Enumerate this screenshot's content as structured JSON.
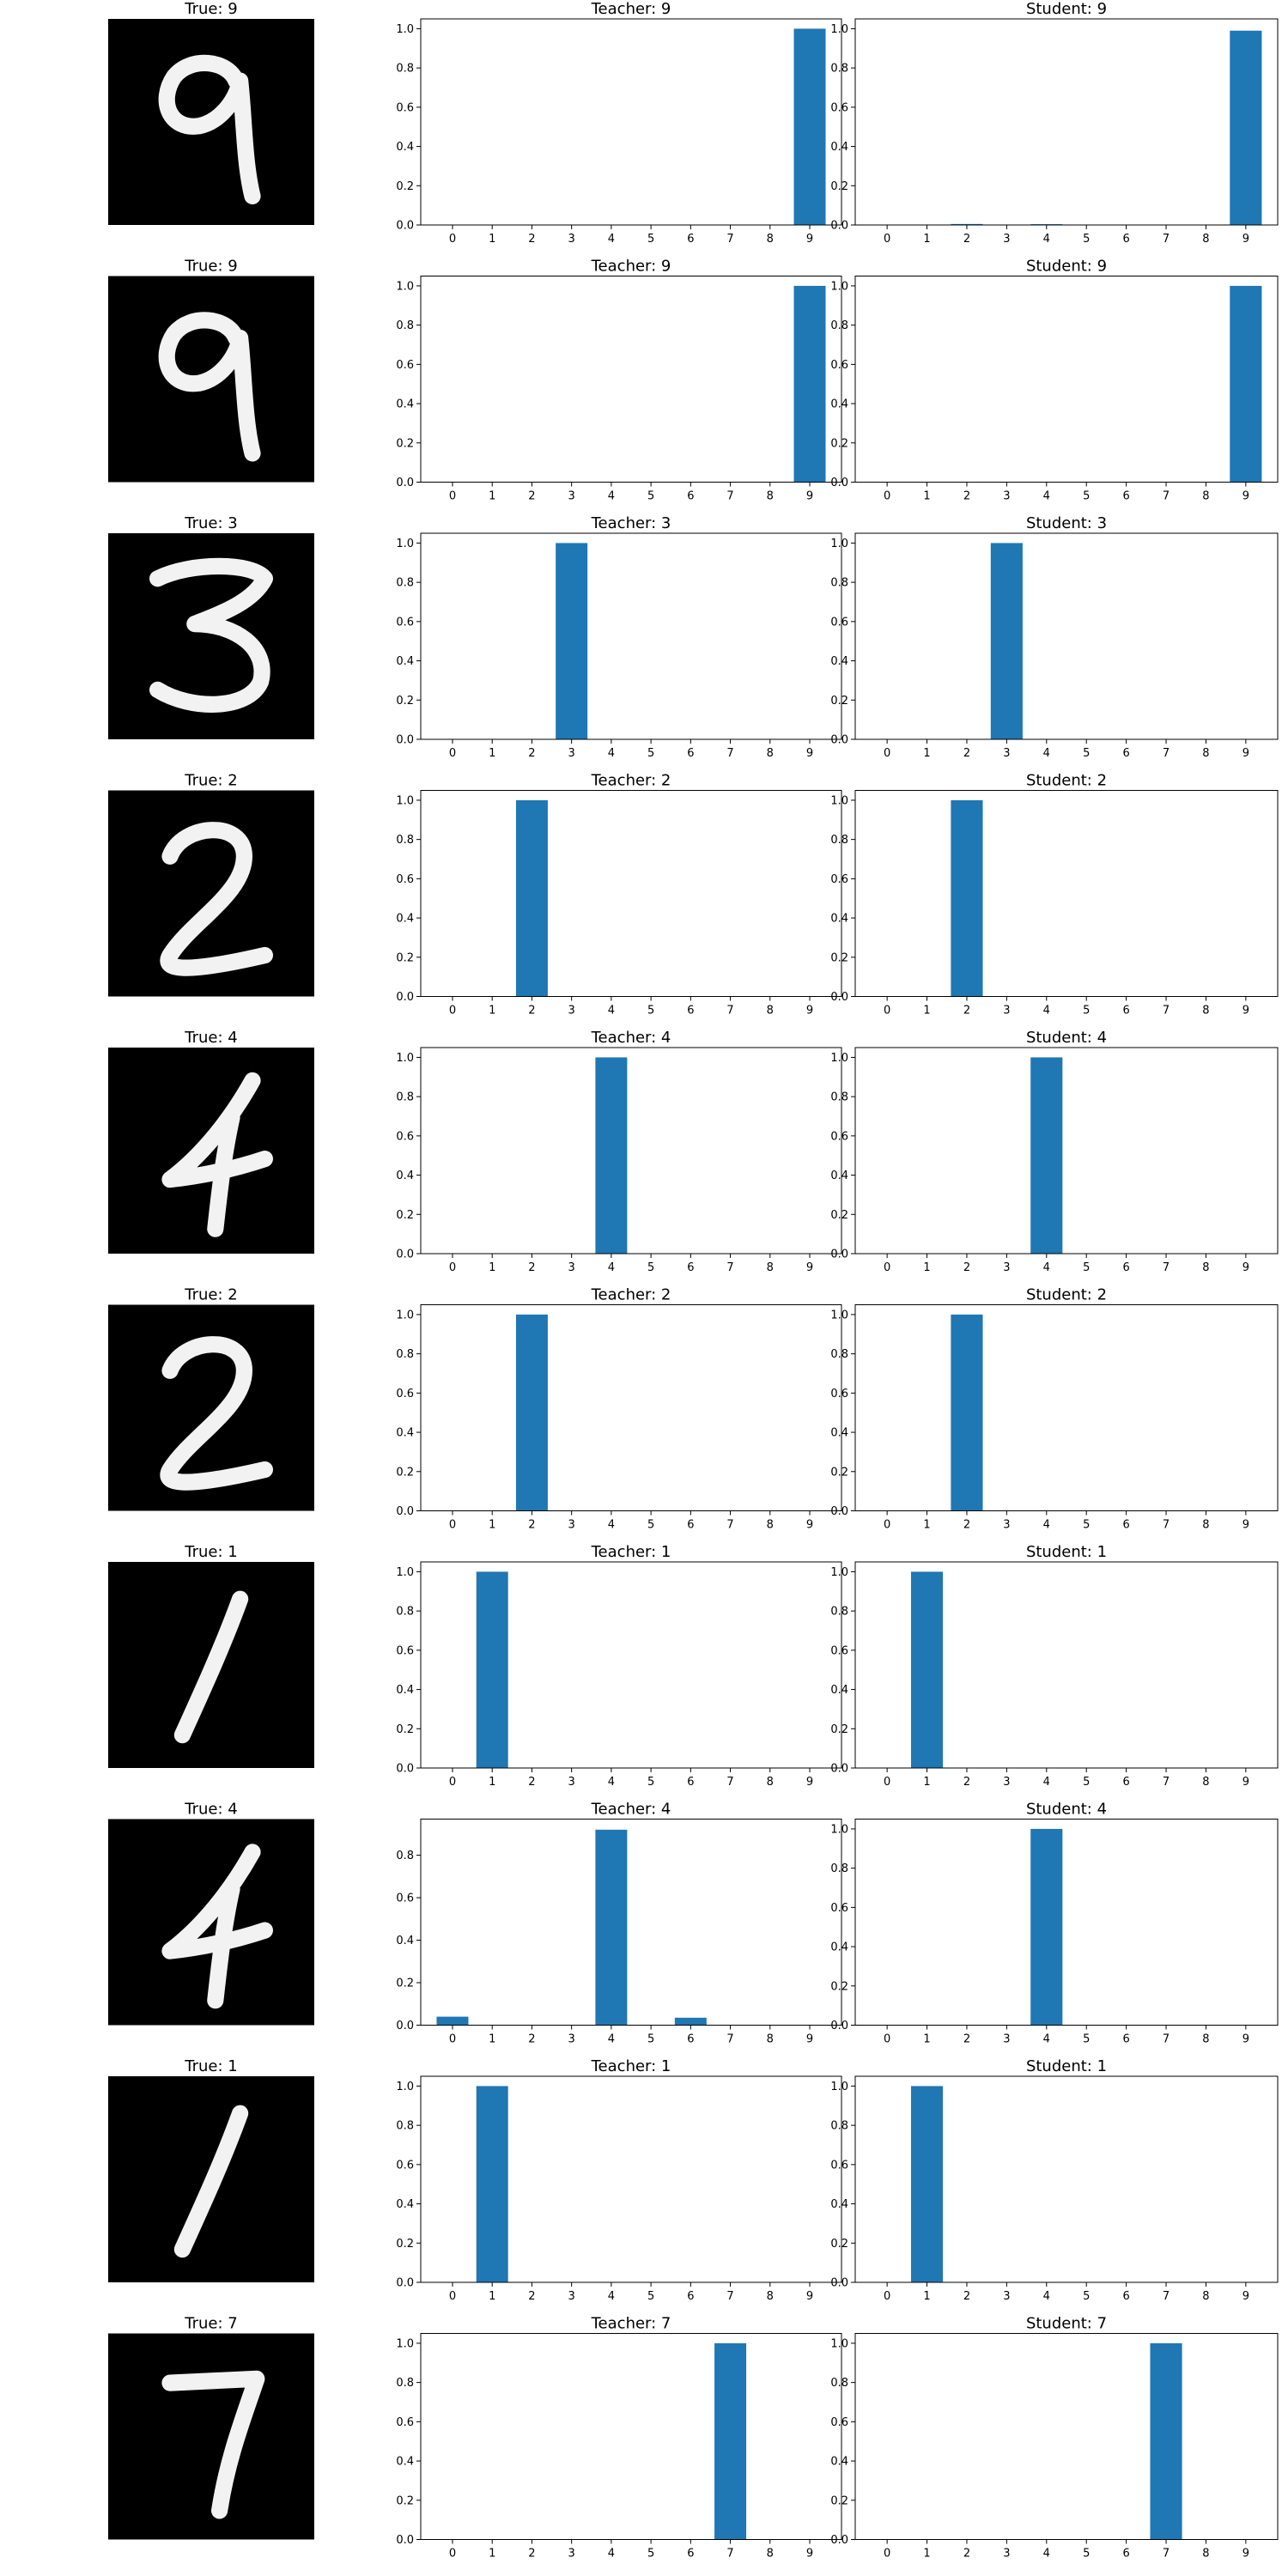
{
  "colors": {
    "bar": "#1f77b4",
    "image_bg": "#000000",
    "stroke": "#f2f2f2",
    "axis": "#000000"
  },
  "x_categories": [
    "0",
    "1",
    "2",
    "3",
    "4",
    "5",
    "6",
    "7",
    "8",
    "9"
  ],
  "rows": [
    {
      "digit": {
        "title": "True: 9",
        "glyph": "9"
      },
      "teacher": {
        "title": "Teacher: 9",
        "values": [
          0,
          0,
          0,
          0,
          0,
          0,
          0,
          0,
          0,
          1.0
        ],
        "ylim": [
          0,
          1.05
        ],
        "yticks": [
          "0.0",
          "0.2",
          "0.4",
          "0.6",
          "0.8",
          "1.0"
        ]
      },
      "student": {
        "title": "Student: 9",
        "values": [
          0,
          0,
          0.005,
          0,
          0.004,
          0,
          0,
          0,
          0,
          0.99
        ],
        "ylim": [
          0,
          1.05
        ],
        "yticks": [
          "0.0",
          "0.2",
          "0.4",
          "0.6",
          "0.8",
          "1.0"
        ]
      }
    },
    {
      "digit": {
        "title": "True: 9",
        "glyph": "9"
      },
      "teacher": {
        "title": "Teacher: 9",
        "values": [
          0,
          0,
          0,
          0,
          0,
          0,
          0,
          0,
          0,
          1.0
        ],
        "ylim": [
          0,
          1.05
        ],
        "yticks": [
          "0.0",
          "0.2",
          "0.4",
          "0.6",
          "0.8",
          "1.0"
        ]
      },
      "student": {
        "title": "Student: 9",
        "values": [
          0,
          0,
          0,
          0,
          0,
          0,
          0,
          0,
          0,
          1.0
        ],
        "ylim": [
          0,
          1.05
        ],
        "yticks": [
          "0.0",
          "0.2",
          "0.4",
          "0.6",
          "0.8",
          "1.0"
        ]
      }
    },
    {
      "digit": {
        "title": "True: 3",
        "glyph": "3"
      },
      "teacher": {
        "title": "Teacher: 3",
        "values": [
          0,
          0,
          0,
          1.0,
          0,
          0,
          0,
          0,
          0,
          0
        ],
        "ylim": [
          0,
          1.05
        ],
        "yticks": [
          "0.0",
          "0.2",
          "0.4",
          "0.6",
          "0.8",
          "1.0"
        ]
      },
      "student": {
        "title": "Student: 3",
        "values": [
          0,
          0,
          0,
          1.0,
          0,
          0,
          0,
          0,
          0,
          0
        ],
        "ylim": [
          0,
          1.05
        ],
        "yticks": [
          "0.0",
          "0.2",
          "0.4",
          "0.6",
          "0.8",
          "1.0"
        ]
      }
    },
    {
      "digit": {
        "title": "True: 2",
        "glyph": "2"
      },
      "teacher": {
        "title": "Teacher: 2",
        "values": [
          0,
          0,
          1.0,
          0,
          0,
          0,
          0,
          0,
          0,
          0
        ],
        "ylim": [
          0,
          1.05
        ],
        "yticks": [
          "0.0",
          "0.2",
          "0.4",
          "0.6",
          "0.8",
          "1.0"
        ]
      },
      "student": {
        "title": "Student: 2",
        "values": [
          0,
          0,
          1.0,
          0,
          0,
          0,
          0,
          0,
          0,
          0
        ],
        "ylim": [
          0,
          1.05
        ],
        "yticks": [
          "0.0",
          "0.2",
          "0.4",
          "0.6",
          "0.8",
          "1.0"
        ]
      }
    },
    {
      "digit": {
        "title": "True: 4",
        "glyph": "4"
      },
      "teacher": {
        "title": "Teacher: 4",
        "values": [
          0,
          0,
          0,
          0,
          1.0,
          0,
          0,
          0,
          0,
          0
        ],
        "ylim": [
          0,
          1.05
        ],
        "yticks": [
          "0.0",
          "0.2",
          "0.4",
          "0.6",
          "0.8",
          "1.0"
        ]
      },
      "student": {
        "title": "Student: 4",
        "values": [
          0,
          0,
          0,
          0,
          1.0,
          0,
          0,
          0,
          0,
          0
        ],
        "ylim": [
          0,
          1.05
        ],
        "yticks": [
          "0.0",
          "0.2",
          "0.4",
          "0.6",
          "0.8",
          "1.0"
        ]
      }
    },
    {
      "digit": {
        "title": "True: 2",
        "glyph": "2"
      },
      "teacher": {
        "title": "Teacher: 2",
        "values": [
          0,
          0,
          1.0,
          0,
          0,
          0,
          0,
          0,
          0,
          0
        ],
        "ylim": [
          0,
          1.05
        ],
        "yticks": [
          "0.0",
          "0.2",
          "0.4",
          "0.6",
          "0.8",
          "1.0"
        ]
      },
      "student": {
        "title": "Student: 2",
        "values": [
          0,
          0,
          1.0,
          0,
          0,
          0,
          0,
          0,
          0,
          0
        ],
        "ylim": [
          0,
          1.05
        ],
        "yticks": [
          "0.0",
          "0.2",
          "0.4",
          "0.6",
          "0.8",
          "1.0"
        ]
      }
    },
    {
      "digit": {
        "title": "True: 1",
        "glyph": "1"
      },
      "teacher": {
        "title": "Teacher: 1",
        "values": [
          0,
          1.0,
          0,
          0,
          0,
          0,
          0,
          0,
          0,
          0
        ],
        "ylim": [
          0,
          1.05
        ],
        "yticks": [
          "0.0",
          "0.2",
          "0.4",
          "0.6",
          "0.8",
          "1.0"
        ]
      },
      "student": {
        "title": "Student: 1",
        "values": [
          0,
          1.0,
          0,
          0,
          0,
          0,
          0,
          0,
          0,
          0
        ],
        "ylim": [
          0,
          1.05
        ],
        "yticks": [
          "0.0",
          "0.2",
          "0.4",
          "0.6",
          "0.8",
          "1.0"
        ]
      }
    },
    {
      "digit": {
        "title": "True: 4",
        "glyph": "4"
      },
      "teacher": {
        "title": "Teacher: 4",
        "values": [
          0.04,
          0,
          0,
          0,
          0.92,
          0,
          0.035,
          0,
          0,
          0
        ],
        "ylim": [
          0,
          0.97
        ],
        "yticks": [
          "0.0",
          "0.2",
          "0.4",
          "0.6",
          "0.8"
        ]
      },
      "student": {
        "title": "Student: 4",
        "values": [
          0,
          0,
          0,
          0,
          1.0,
          0,
          0,
          0,
          0,
          0
        ],
        "ylim": [
          0,
          1.05
        ],
        "yticks": [
          "0.0",
          "0.2",
          "0.4",
          "0.6",
          "0.8",
          "1.0"
        ]
      }
    },
    {
      "digit": {
        "title": "True: 1",
        "glyph": "1"
      },
      "teacher": {
        "title": "Teacher: 1",
        "values": [
          0,
          1.0,
          0,
          0,
          0,
          0,
          0,
          0,
          0,
          0
        ],
        "ylim": [
          0,
          1.05
        ],
        "yticks": [
          "0.0",
          "0.2",
          "0.4",
          "0.6",
          "0.8",
          "1.0"
        ]
      },
      "student": {
        "title": "Student: 1",
        "values": [
          0,
          1.0,
          0,
          0,
          0,
          0,
          0,
          0,
          0,
          0
        ],
        "ylim": [
          0,
          1.05
        ],
        "yticks": [
          "0.0",
          "0.2",
          "0.4",
          "0.6",
          "0.8",
          "1.0"
        ]
      }
    },
    {
      "digit": {
        "title": "True: 7",
        "glyph": "7"
      },
      "teacher": {
        "title": "Teacher: 7",
        "values": [
          0,
          0,
          0,
          0,
          0,
          0,
          0,
          1.0,
          0,
          0
        ],
        "ylim": [
          0,
          1.05
        ],
        "yticks": [
          "0.0",
          "0.2",
          "0.4",
          "0.6",
          "0.8",
          "1.0"
        ]
      },
      "student": {
        "title": "Student: 7",
        "values": [
          0,
          0,
          0,
          0,
          0,
          0,
          0,
          1.0,
          0,
          0
        ],
        "ylim": [
          0,
          1.05
        ],
        "yticks": [
          "0.0",
          "0.2",
          "0.4",
          "0.6",
          "0.8",
          "1.0"
        ]
      }
    }
  ],
  "chart_data": {
    "type": "bar",
    "categories": [
      "0",
      "1",
      "2",
      "3",
      "4",
      "5",
      "6",
      "7",
      "8",
      "9"
    ],
    "grid": false,
    "panels": [
      {
        "title": "Teacher: 9",
        "values": [
          0,
          0,
          0,
          0,
          0,
          0,
          0,
          0,
          0,
          1.0
        ]
      },
      {
        "title": "Student: 9",
        "values": [
          0,
          0,
          0.005,
          0,
          0.004,
          0,
          0,
          0,
          0,
          0.99
        ]
      },
      {
        "title": "Teacher: 9",
        "values": [
          0,
          0,
          0,
          0,
          0,
          0,
          0,
          0,
          0,
          1.0
        ]
      },
      {
        "title": "Student: 9",
        "values": [
          0,
          0,
          0,
          0,
          0,
          0,
          0,
          0,
          0,
          1.0
        ]
      },
      {
        "title": "Teacher: 3",
        "values": [
          0,
          0,
          0,
          1.0,
          0,
          0,
          0,
          0,
          0,
          0
        ]
      },
      {
        "title": "Student: 3",
        "values": [
          0,
          0,
          0,
          1.0,
          0,
          0,
          0,
          0,
          0,
          0
        ]
      },
      {
        "title": "Teacher: 2",
        "values": [
          0,
          0,
          1.0,
          0,
          0,
          0,
          0,
          0,
          0,
          0
        ]
      },
      {
        "title": "Student: 2",
        "values": [
          0,
          0,
          1.0,
          0,
          0,
          0,
          0,
          0,
          0,
          0
        ]
      },
      {
        "title": "Teacher: 4",
        "values": [
          0,
          0,
          0,
          0,
          1.0,
          0,
          0,
          0,
          0,
          0
        ]
      },
      {
        "title": "Student: 4",
        "values": [
          0,
          0,
          0,
          0,
          1.0,
          0,
          0,
          0,
          0,
          0
        ]
      },
      {
        "title": "Teacher: 2",
        "values": [
          0,
          0,
          1.0,
          0,
          0,
          0,
          0,
          0,
          0,
          0
        ]
      },
      {
        "title": "Student: 2",
        "values": [
          0,
          0,
          1.0,
          0,
          0,
          0,
          0,
          0,
          0,
          0
        ]
      },
      {
        "title": "Teacher: 1",
        "values": [
          0,
          1.0,
          0,
          0,
          0,
          0,
          0,
          0,
          0,
          0
        ]
      },
      {
        "title": "Student: 1",
        "values": [
          0,
          1.0,
          0,
          0,
          0,
          0,
          0,
          0,
          0,
          0
        ]
      },
      {
        "title": "Teacher: 4",
        "values": [
          0.04,
          0,
          0,
          0,
          0.92,
          0,
          0.035,
          0,
          0,
          0
        ]
      },
      {
        "title": "Student: 4",
        "values": [
          0,
          0,
          0,
          0,
          1.0,
          0,
          0,
          0,
          0,
          0
        ]
      },
      {
        "title": "Teacher: 1",
        "values": [
          0,
          1.0,
          0,
          0,
          0,
          0,
          0,
          0,
          0,
          0
        ]
      },
      {
        "title": "Student: 1",
        "values": [
          0,
          1.0,
          0,
          0,
          0,
          0,
          0,
          0,
          0,
          0
        ]
      },
      {
        "title": "Teacher: 7",
        "values": [
          0,
          0,
          0,
          0,
          0,
          0,
          0,
          1.0,
          0,
          0
        ]
      },
      {
        "title": "Student: 7",
        "values": [
          0,
          0,
          0,
          0,
          0,
          0,
          0,
          1.0,
          0,
          0
        ]
      }
    ]
  }
}
